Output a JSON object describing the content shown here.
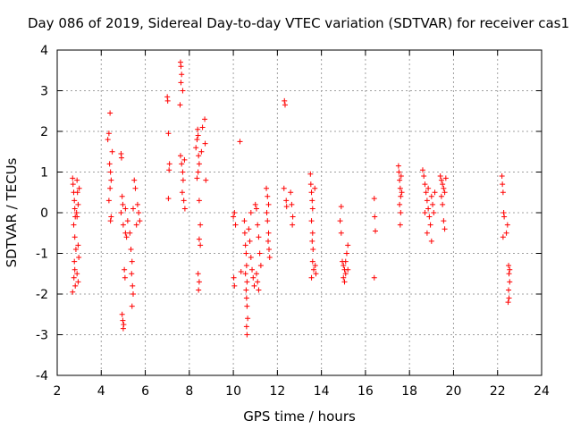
{
  "chart_data": {
    "type": "scatter",
    "title": "Day 086 of 2019, Sidereal Day-to-day VTEC variation (SDTVAR) for receiver cas1",
    "xlabel": "GPS time / hours",
    "ylabel": "SDTVAR / TECUs",
    "xlim": [
      2,
      24
    ],
    "ylim": [
      -4,
      4
    ],
    "xticks": [
      2,
      4,
      6,
      8,
      10,
      12,
      14,
      16,
      18,
      20,
      22,
      24
    ],
    "yticks": [
      -4,
      -3,
      -2,
      -1,
      0,
      1,
      2,
      3,
      4
    ],
    "grid": true,
    "marker": "+",
    "color": "#ff0000",
    "series": [
      {
        "name": "SDTVAR",
        "points": [
          [
            2.7,
            0.85
          ],
          [
            2.72,
            0.7
          ],
          [
            2.75,
            0.5
          ],
          [
            2.78,
            0.3
          ],
          [
            2.8,
            0.1
          ],
          [
            2.82,
            -0.1
          ],
          [
            2.75,
            -0.3
          ],
          [
            2.8,
            -0.6
          ],
          [
            2.85,
            -0.9
          ],
          [
            2.78,
            -1.2
          ],
          [
            2.8,
            -1.4
          ],
          [
            2.76,
            -1.6
          ],
          [
            2.82,
            -1.8
          ],
          [
            2.7,
            -1.95
          ],
          [
            2.9,
            0.8
          ],
          [
            2.92,
            0.5
          ],
          [
            2.95,
            0.2
          ],
          [
            2.9,
            -0.1
          ],
          [
            2.95,
            -0.8
          ],
          [
            2.98,
            -1.1
          ],
          [
            2.9,
            -1.5
          ],
          [
            2.95,
            -1.7
          ],
          [
            3.0,
            0.6
          ],
          [
            2.88,
            0.0
          ],
          [
            4.3,
            1.8
          ],
          [
            4.35,
            1.95
          ],
          [
            4.4,
            2.45
          ],
          [
            4.38,
            1.2
          ],
          [
            4.42,
            1.0
          ],
          [
            4.45,
            0.8
          ],
          [
            4.4,
            0.6
          ],
          [
            4.35,
            0.3
          ],
          [
            4.45,
            -0.1
          ],
          [
            4.42,
            -0.2
          ],
          [
            4.5,
            1.5
          ],
          [
            4.9,
            1.45
          ],
          [
            4.92,
            1.35
          ],
          [
            4.95,
            0.4
          ],
          [
            4.98,
            0.2
          ],
          [
            4.9,
            0.0
          ],
          [
            5.0,
            -0.3
          ],
          [
            4.95,
            -2.5
          ],
          [
            4.98,
            -2.65
          ],
          [
            5.02,
            -2.75
          ],
          [
            5.0,
            -2.85
          ],
          [
            5.05,
            -1.4
          ],
          [
            5.08,
            -1.6
          ],
          [
            5.1,
            -0.5
          ],
          [
            5.15,
            -0.6
          ],
          [
            5.1,
            0.1
          ],
          [
            5.2,
            -0.2
          ],
          [
            5.3,
            -0.5
          ],
          [
            5.35,
            -0.9
          ],
          [
            5.4,
            -1.2
          ],
          [
            5.38,
            -1.5
          ],
          [
            5.42,
            -1.8
          ],
          [
            5.45,
            -2.0
          ],
          [
            5.4,
            -2.3
          ],
          [
            5.45,
            0.1
          ],
          [
            5.5,
            0.8
          ],
          [
            5.55,
            0.6
          ],
          [
            5.6,
            -0.3
          ],
          [
            5.65,
            0.2
          ],
          [
            5.7,
            0.0
          ],
          [
            5.75,
            -0.2
          ],
          [
            7.0,
            2.85
          ],
          [
            7.02,
            2.75
          ],
          [
            7.05,
            1.95
          ],
          [
            7.1,
            1.2
          ],
          [
            7.08,
            1.05
          ],
          [
            7.05,
            0.35
          ],
          [
            7.6,
            3.7
          ],
          [
            7.62,
            3.6
          ],
          [
            7.65,
            3.4
          ],
          [
            7.62,
            3.2
          ],
          [
            7.7,
            3.0
          ],
          [
            7.58,
            2.65
          ],
          [
            7.6,
            1.4
          ],
          [
            7.65,
            1.2
          ],
          [
            7.7,
            1.0
          ],
          [
            7.72,
            0.8
          ],
          [
            7.68,
            0.5
          ],
          [
            7.75,
            0.3
          ],
          [
            7.8,
            0.1
          ],
          [
            7.78,
            1.3
          ],
          [
            8.3,
            1.6
          ],
          [
            8.35,
            1.8
          ],
          [
            8.4,
            1.9
          ],
          [
            8.38,
            2.05
          ],
          [
            8.42,
            1.4
          ],
          [
            8.45,
            1.2
          ],
          [
            8.4,
            1.0
          ],
          [
            8.35,
            0.85
          ],
          [
            8.45,
            0.3
          ],
          [
            8.5,
            -0.3
          ],
          [
            8.45,
            -0.65
          ],
          [
            8.5,
            -0.8
          ],
          [
            8.4,
            -1.5
          ],
          [
            8.45,
            -1.7
          ],
          [
            8.42,
            -1.9
          ],
          [
            8.6,
            2.1
          ],
          [
            8.7,
            2.3
          ],
          [
            8.72,
            1.7
          ],
          [
            8.75,
            0.8
          ],
          [
            8.55,
            1.5
          ],
          [
            10.0,
            -0.1
          ],
          [
            10.05,
            0.0
          ],
          [
            10.02,
            -1.6
          ],
          [
            10.05,
            -1.8
          ],
          [
            10.1,
            -0.3
          ],
          [
            10.3,
            1.75
          ],
          [
            10.35,
            -1.45
          ],
          [
            10.5,
            -0.2
          ],
          [
            10.52,
            -0.5
          ],
          [
            10.55,
            -0.8
          ],
          [
            10.58,
            -1.0
          ],
          [
            10.6,
            -1.3
          ],
          [
            10.55,
            -1.5
          ],
          [
            10.62,
            -1.7
          ],
          [
            10.58,
            -1.9
          ],
          [
            10.6,
            -2.1
          ],
          [
            10.62,
            -2.3
          ],
          [
            10.65,
            -2.6
          ],
          [
            10.6,
            -2.8
          ],
          [
            10.62,
            -3.0
          ],
          [
            10.7,
            -0.4
          ],
          [
            10.75,
            -0.7
          ],
          [
            10.8,
            -1.1
          ],
          [
            10.85,
            -1.4
          ],
          [
            10.9,
            -1.6
          ],
          [
            10.95,
            -1.8
          ],
          [
            10.8,
            0.0
          ],
          [
            11.0,
            0.2
          ],
          [
            11.05,
            0.1
          ],
          [
            11.1,
            -0.3
          ],
          [
            11.15,
            -0.6
          ],
          [
            11.2,
            -1.0
          ],
          [
            11.25,
            -1.3
          ],
          [
            11.05,
            -1.5
          ],
          [
            11.1,
            -1.7
          ],
          [
            11.15,
            -1.9
          ],
          [
            11.5,
            0.6
          ],
          [
            11.55,
            0.4
          ],
          [
            11.6,
            0.2
          ],
          [
            11.52,
            0.0
          ],
          [
            11.55,
            -0.2
          ],
          [
            11.6,
            -0.5
          ],
          [
            11.58,
            -0.7
          ],
          [
            11.62,
            -0.9
          ],
          [
            11.65,
            -1.1
          ],
          [
            12.3,
            0.6
          ],
          [
            12.32,
            2.75
          ],
          [
            12.35,
            2.65
          ],
          [
            12.4,
            0.3
          ],
          [
            12.42,
            0.15
          ],
          [
            12.6,
            0.5
          ],
          [
            12.65,
            0.2
          ],
          [
            12.7,
            -0.1
          ],
          [
            12.68,
            -0.3
          ],
          [
            13.5,
            0.95
          ],
          [
            13.52,
            0.7
          ],
          [
            13.55,
            0.5
          ],
          [
            13.58,
            0.3
          ],
          [
            13.6,
            0.1
          ],
          [
            13.55,
            -0.2
          ],
          [
            13.6,
            -0.5
          ],
          [
            13.58,
            -0.7
          ],
          [
            13.62,
            -0.9
          ],
          [
            13.6,
            -1.2
          ],
          [
            13.65,
            -1.4
          ],
          [
            13.55,
            -1.6
          ],
          [
            13.7,
            0.6
          ],
          [
            13.72,
            -1.3
          ],
          [
            13.75,
            -1.5
          ],
          [
            14.9,
            0.15
          ],
          [
            14.85,
            -0.2
          ],
          [
            14.9,
            -0.5
          ],
          [
            14.95,
            -1.2
          ],
          [
            15.0,
            -1.3
          ],
          [
            15.05,
            -1.4
          ],
          [
            15.1,
            -1.5
          ],
          [
            15.0,
            -1.6
          ],
          [
            15.05,
            -1.7
          ],
          [
            15.15,
            -1.0
          ],
          [
            15.2,
            -0.8
          ],
          [
            15.1,
            -1.2
          ],
          [
            15.2,
            -1.4
          ],
          [
            16.4,
            0.35
          ],
          [
            16.42,
            -0.1
          ],
          [
            16.45,
            -0.45
          ],
          [
            16.4,
            -1.6
          ],
          [
            17.5,
            1.15
          ],
          [
            17.52,
            1.0
          ],
          [
            17.55,
            0.8
          ],
          [
            17.58,
            0.6
          ],
          [
            17.6,
            0.4
          ],
          [
            17.55,
            0.2
          ],
          [
            17.6,
            0.0
          ],
          [
            17.58,
            -0.3
          ],
          [
            17.62,
            0.9
          ],
          [
            17.65,
            0.5
          ],
          [
            18.6,
            1.05
          ],
          [
            18.65,
            0.9
          ],
          [
            18.7,
            0.7
          ],
          [
            18.75,
            0.5
          ],
          [
            18.8,
            0.3
          ],
          [
            18.85,
            0.1
          ],
          [
            18.9,
            -0.1
          ],
          [
            18.95,
            -0.3
          ],
          [
            18.8,
            -0.5
          ],
          [
            18.85,
            0.6
          ],
          [
            19.0,
            0.4
          ],
          [
            19.05,
            0.2
          ],
          [
            19.1,
            0.0
          ],
          [
            19.15,
            0.5
          ],
          [
            18.7,
            0.0
          ],
          [
            19.0,
            -0.7
          ],
          [
            19.4,
            0.9
          ],
          [
            19.45,
            0.8
          ],
          [
            19.5,
            0.7
          ],
          [
            19.55,
            0.6
          ],
          [
            19.6,
            0.5
          ],
          [
            19.5,
            0.2
          ],
          [
            19.55,
            -0.2
          ],
          [
            19.6,
            -0.4
          ],
          [
            19.45,
            0.4
          ],
          [
            19.65,
            0.85
          ],
          [
            22.2,
            0.9
          ],
          [
            22.22,
            0.7
          ],
          [
            22.25,
            0.5
          ],
          [
            22.28,
            0.0
          ],
          [
            22.3,
            -0.1
          ],
          [
            22.25,
            -0.6
          ],
          [
            22.4,
            -0.5
          ],
          [
            22.45,
            -0.3
          ],
          [
            22.5,
            -1.3
          ],
          [
            22.52,
            -1.5
          ],
          [
            22.55,
            -1.7
          ],
          [
            22.5,
            -1.9
          ],
          [
            22.52,
            -2.1
          ],
          [
            22.48,
            -2.2
          ],
          [
            22.55,
            -1.4
          ]
        ]
      }
    ]
  }
}
